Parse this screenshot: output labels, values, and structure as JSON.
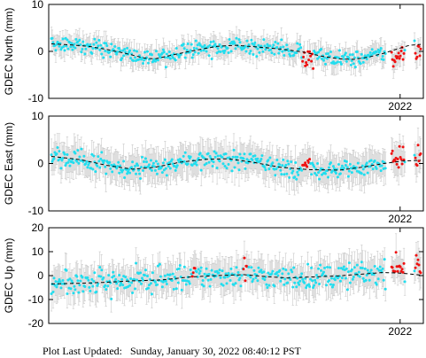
{
  "footer": {
    "label": "Plot Last Updated:",
    "timestamp": "Sunday, January 30, 2022 08:40:12 PST"
  },
  "colors": {
    "error_bar": "#c8c8c8",
    "point": "#22ddee",
    "recent_point": "#ee1111",
    "trend": "#000000",
    "axis": "#000000"
  },
  "chart_data": [
    {
      "type": "scatter",
      "ylabel": "GDEC North (mm)",
      "yticks": [
        10,
        0,
        -10
      ],
      "ylim": [
        -10,
        10
      ],
      "xtick_label": "2022",
      "grid": false,
      "legend": "none",
      "error_bar_halfwidth_mm": 2.0,
      "trend": [
        [
          0.0,
          1.6
        ],
        [
          0.05,
          1.4
        ],
        [
          0.1,
          1.1
        ],
        [
          0.15,
          0.4
        ],
        [
          0.2,
          -0.4
        ],
        [
          0.25,
          -1.4
        ],
        [
          0.28,
          -1.6
        ],
        [
          0.32,
          -0.9
        ],
        [
          0.38,
          0.1
        ],
        [
          0.45,
          1.1
        ],
        [
          0.5,
          1.3
        ],
        [
          0.55,
          1.0
        ],
        [
          0.62,
          0.5
        ],
        [
          0.68,
          -0.1
        ],
        [
          0.73,
          -1.0
        ],
        [
          0.78,
          -1.6
        ],
        [
          0.82,
          -1.7
        ],
        [
          0.86,
          -1.2
        ],
        [
          0.9,
          -0.4
        ],
        [
          0.94,
          0.6
        ],
        [
          0.97,
          1.3
        ],
        [
          1.0,
          1.5
        ]
      ],
      "noise_mm": 1.5,
      "recent_segments": [
        [
          0.68,
          0.71
        ],
        [
          0.92,
          0.955
        ],
        [
          0.985,
          1.0
        ]
      ],
      "recent_offset_mm": -1.5
    },
    {
      "type": "scatter",
      "ylabel": "GDEC East (mm)",
      "yticks": [
        10,
        0,
        -10
      ],
      "ylim": [
        -10,
        10
      ],
      "xtick_label": "2022",
      "grid": false,
      "legend": "none",
      "error_bar_halfwidth_mm": 3.0,
      "trend": [
        [
          0.0,
          1.5
        ],
        [
          0.08,
          0.8
        ],
        [
          0.15,
          -0.4
        ],
        [
          0.22,
          -1.2
        ],
        [
          0.28,
          -0.8
        ],
        [
          0.35,
          0.3
        ],
        [
          0.42,
          0.9
        ],
        [
          0.48,
          1.0
        ],
        [
          0.55,
          0.2
        ],
        [
          0.62,
          -0.8
        ],
        [
          0.7,
          -1.3
        ],
        [
          0.78,
          -1.4
        ],
        [
          0.84,
          -0.8
        ],
        [
          0.9,
          0.0
        ],
        [
          0.95,
          0.5
        ],
        [
          1.0,
          0.7
        ]
      ],
      "noise_mm": 1.7,
      "recent_segments": [
        [
          0.68,
          0.7
        ],
        [
          0.92,
          0.955
        ],
        [
          0.985,
          1.0
        ]
      ],
      "recent_offset_mm": 0.8
    },
    {
      "type": "scatter",
      "ylabel": "GDEC Up (mm)",
      "yticks": [
        20,
        10,
        0,
        -10,
        -20
      ],
      "ylim": [
        -20,
        20
      ],
      "xtick_label": "2022",
      "grid": false,
      "legend": "none",
      "error_bar_halfwidth_mm": 6.0,
      "trend": [
        [
          0.0,
          -3.5
        ],
        [
          0.08,
          -3.2
        ],
        [
          0.15,
          -2.8
        ],
        [
          0.22,
          -2.2
        ],
        [
          0.3,
          -1.8
        ],
        [
          0.38,
          -0.5
        ],
        [
          0.45,
          0.0
        ],
        [
          0.52,
          0.4
        ],
        [
          0.58,
          -0.4
        ],
        [
          0.64,
          -1.0
        ],
        [
          0.7,
          -0.6
        ],
        [
          0.78,
          -0.1
        ],
        [
          0.84,
          0.6
        ],
        [
          0.9,
          1.3
        ],
        [
          0.95,
          1.0
        ],
        [
          1.0,
          0.2
        ]
      ],
      "noise_mm": 4.5,
      "recent_segments": [
        [
          0.38,
          0.39
        ],
        [
          0.52,
          0.53
        ],
        [
          0.92,
          0.955
        ],
        [
          0.985,
          1.0
        ]
      ],
      "recent_offset_mm": 2.5
    }
  ]
}
